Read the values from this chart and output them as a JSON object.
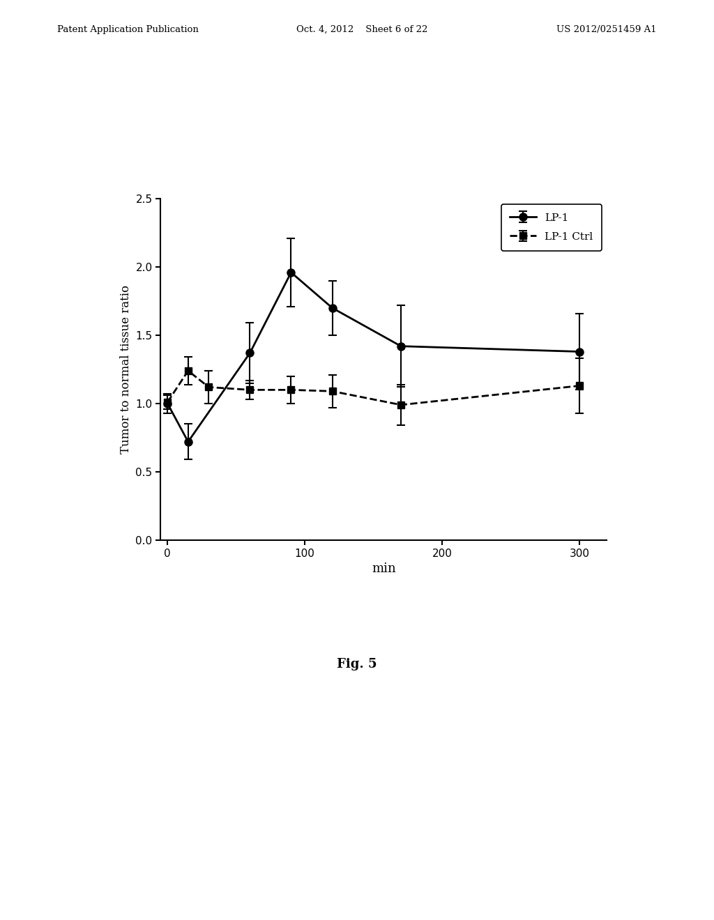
{
  "lp1_x": [
    0,
    15,
    60,
    90,
    120,
    170,
    300
  ],
  "lp1_y": [
    1.0,
    0.72,
    1.37,
    1.96,
    1.7,
    1.42,
    1.38
  ],
  "lp1_yerr": [
    0.07,
    0.13,
    0.22,
    0.25,
    0.2,
    0.3,
    0.28
  ],
  "ctrl_x": [
    0,
    15,
    30,
    60,
    90,
    120,
    170,
    300
  ],
  "ctrl_y": [
    1.01,
    1.24,
    1.12,
    1.1,
    1.1,
    1.09,
    0.99,
    1.13
  ],
  "ctrl_yerr": [
    0.05,
    0.1,
    0.12,
    0.07,
    0.1,
    0.12,
    0.15,
    0.2
  ],
  "xlabel": "min",
  "ylabel": "Tumor to normal tissue ratio",
  "legend_lp1": "LP-1",
  "legend_ctrl": "LP-1 Ctrl",
  "ylim": [
    0.0,
    2.5
  ],
  "xlim": [
    -5,
    320
  ],
  "yticks": [
    0.0,
    0.5,
    1.0,
    1.5,
    2.0,
    2.5
  ],
  "xticks": [
    0,
    100,
    200,
    300
  ],
  "fig_caption": "Fig. 5",
  "header_left": "Patent Application Publication",
  "header_center": "Oct. 4, 2012    Sheet 6 of 22",
  "header_right": "US 2012/0251459 A1",
  "bg_color": "#ffffff",
  "line_color": "#000000"
}
